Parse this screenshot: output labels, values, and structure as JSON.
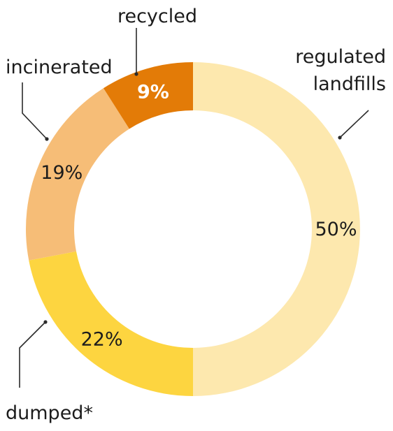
{
  "chart_data": {
    "type": "pie",
    "variant": "donut",
    "categories": [
      "regulated landfills",
      "dumped*",
      "incinerated",
      "recycled"
    ],
    "values": [
      50,
      22,
      19,
      9
    ],
    "value_labels": [
      "50%",
      "22%",
      "19%",
      "9%"
    ],
    "colors": [
      "#fde8ae",
      "#fdd540",
      "#f6bd77",
      "#e37b07"
    ],
    "callouts": [
      {
        "label": "regulated landfills",
        "lines": [
          "regulated",
          "landfills"
        ]
      },
      {
        "label": "dumped*",
        "lines": [
          "dumped*"
        ]
      },
      {
        "label": "incinerated",
        "lines": [
          "incinerated"
        ]
      },
      {
        "label": "recycled",
        "lines": [
          "recycled"
        ]
      }
    ],
    "start_angle": "12 o'clock",
    "direction": "clockwise",
    "legend": "none (direct callout labels)"
  }
}
